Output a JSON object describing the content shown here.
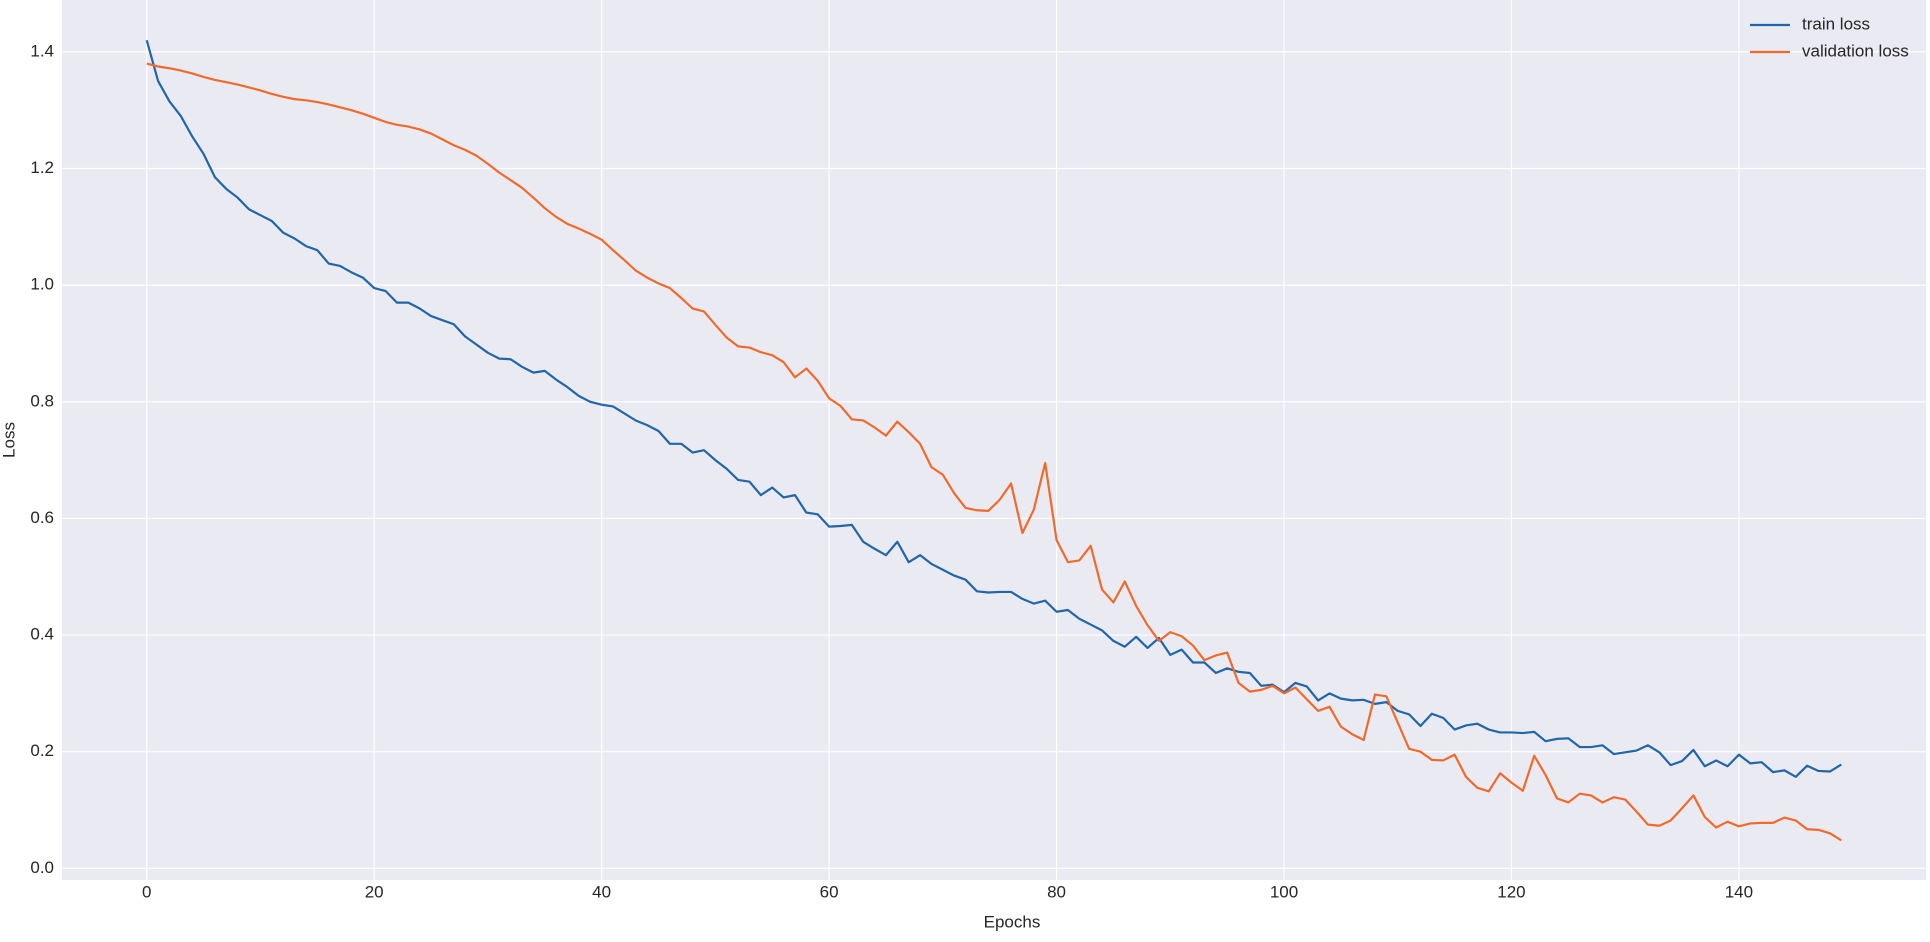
{
  "chart_data": {
    "type": "line",
    "x_label": "Epochs",
    "y_label": "Loss",
    "xlim": [
      -7.45,
      156.45
    ],
    "ylim": [
      -0.02,
      1.489
    ],
    "xticks": [
      0,
      20,
      40,
      60,
      80,
      100,
      120,
      140
    ],
    "yticks": [
      {
        "value": 0.0,
        "label": "0.0"
      },
      0.2,
      0.4,
      0.6,
      0.8,
      {
        "value": 1.0,
        "label": "1.0"
      },
      1.2,
      1.4
    ],
    "grid": true,
    "legend": "upper right",
    "x": [
      0,
      1,
      2,
      3,
      4,
      5,
      6,
      7,
      8,
      9,
      10,
      11,
      12,
      13,
      14,
      15,
      16,
      17,
      18,
      19,
      20,
      21,
      22,
      23,
      24,
      25,
      26,
      27,
      28,
      29,
      30,
      31,
      32,
      33,
      34,
      35,
      36,
      37,
      38,
      39,
      40,
      41,
      42,
      43,
      44,
      45,
      46,
      47,
      48,
      49,
      50,
      51,
      52,
      53,
      54,
      55,
      56,
      57,
      58,
      59,
      60,
      61,
      62,
      63,
      64,
      65,
      66,
      67,
      68,
      69,
      70,
      71,
      72,
      73,
      74,
      75,
      76,
      77,
      78,
      79,
      80,
      81,
      82,
      83,
      84,
      85,
      86,
      87,
      88,
      89,
      90,
      91,
      92,
      93,
      94,
      95,
      96,
      97,
      98,
      99,
      100,
      101,
      102,
      103,
      104,
      105,
      106,
      107,
      108,
      109,
      110,
      111,
      112,
      113,
      114,
      115,
      116,
      117,
      118,
      119,
      120,
      121,
      122,
      123,
      124,
      125,
      126,
      127,
      128,
      129,
      130,
      131,
      132,
      133,
      134,
      135,
      136,
      137,
      138,
      139,
      140,
      141,
      142,
      143,
      144,
      145,
      146,
      147,
      148,
      149
    ],
    "series": [
      {
        "name": "train loss",
        "color": "#2166a8",
        "values": [
          1.42,
          1.35,
          1.315,
          1.29,
          1.255,
          1.225,
          1.185,
          1.165,
          1.15,
          1.13,
          1.12,
          1.11,
          1.09,
          1.08,
          1.067,
          1.06,
          1.037,
          1.033,
          1.022,
          1.013,
          0.995,
          0.99,
          0.97,
          0.97,
          0.96,
          0.947,
          0.94,
          0.933,
          0.912,
          0.898,
          0.884,
          0.874,
          0.873,
          0.86,
          0.85,
          0.853,
          0.838,
          0.825,
          0.81,
          0.8,
          0.795,
          0.792,
          0.78,
          0.768,
          0.76,
          0.75,
          0.728,
          0.728,
          0.713,
          0.717,
          0.7,
          0.685,
          0.666,
          0.663,
          0.64,
          0.653,
          0.636,
          0.64,
          0.61,
          0.607,
          0.586,
          0.587,
          0.589,
          0.56,
          0.548,
          0.537,
          0.56,
          0.525,
          0.537,
          0.522,
          0.512,
          0.502,
          0.495,
          0.475,
          0.473,
          0.474,
          0.474,
          0.462,
          0.454,
          0.459,
          0.44,
          0.443,
          0.428,
          0.418,
          0.408,
          0.39,
          0.38,
          0.397,
          0.378,
          0.395,
          0.366,
          0.375,
          0.353,
          0.353,
          0.335,
          0.343,
          0.337,
          0.335,
          0.313,
          0.315,
          0.302,
          0.318,
          0.312,
          0.288,
          0.3,
          0.291,
          0.288,
          0.289,
          0.282,
          0.285,
          0.27,
          0.264,
          0.244,
          0.265,
          0.258,
          0.238,
          0.245,
          0.248,
          0.238,
          0.233,
          0.233,
          0.232,
          0.234,
          0.218,
          0.222,
          0.223,
          0.208,
          0.208,
          0.211,
          0.196,
          0.199,
          0.202,
          0.211,
          0.199,
          0.177,
          0.184,
          0.203,
          0.175,
          0.185,
          0.175,
          0.195,
          0.18,
          0.182,
          0.165,
          0.168,
          0.157,
          0.176,
          0.167,
          0.166,
          0.178
        ]
      },
      {
        "name": "validation loss",
        "color": "#f26a2a",
        "values": [
          1.38,
          1.375,
          1.372,
          1.368,
          1.363,
          1.357,
          1.352,
          1.348,
          1.344,
          1.339,
          1.334,
          1.328,
          1.323,
          1.319,
          1.317,
          1.314,
          1.31,
          1.305,
          1.3,
          1.294,
          1.287,
          1.28,
          1.275,
          1.272,
          1.267,
          1.26,
          1.25,
          1.24,
          1.232,
          1.222,
          1.208,
          1.193,
          1.18,
          1.167,
          1.15,
          1.132,
          1.117,
          1.105,
          1.097,
          1.088,
          1.078,
          1.06,
          1.043,
          1.025,
          1.013,
          1.003,
          0.995,
          0.978,
          0.96,
          0.955,
          0.932,
          0.91,
          0.895,
          0.893,
          0.885,
          0.88,
          0.868,
          0.842,
          0.857,
          0.836,
          0.806,
          0.793,
          0.77,
          0.768,
          0.756,
          0.742,
          0.766,
          0.748,
          0.728,
          0.688,
          0.675,
          0.643,
          0.618,
          0.614,
          0.613,
          0.632,
          0.66,
          0.575,
          0.615,
          0.695,
          0.563,
          0.525,
          0.528,
          0.553,
          0.478,
          0.456,
          0.492,
          0.45,
          0.417,
          0.39,
          0.405,
          0.398,
          0.382,
          0.357,
          0.365,
          0.37,
          0.318,
          0.303,
          0.306,
          0.313,
          0.3,
          0.31,
          0.29,
          0.27,
          0.277,
          0.243,
          0.23,
          0.22,
          0.298,
          0.295,
          0.25,
          0.205,
          0.2,
          0.186,
          0.185,
          0.195,
          0.157,
          0.138,
          0.132,
          0.163,
          0.147,
          0.133,
          0.193,
          0.16,
          0.12,
          0.113,
          0.128,
          0.125,
          0.113,
          0.122,
          0.118,
          0.097,
          0.075,
          0.073,
          0.082,
          0.103,
          0.125,
          0.088,
          0.07,
          0.08,
          0.072,
          0.077,
          0.078,
          0.078,
          0.087,
          0.082,
          0.067,
          0.066,
          0.06,
          0.048
        ]
      }
    ]
  }
}
